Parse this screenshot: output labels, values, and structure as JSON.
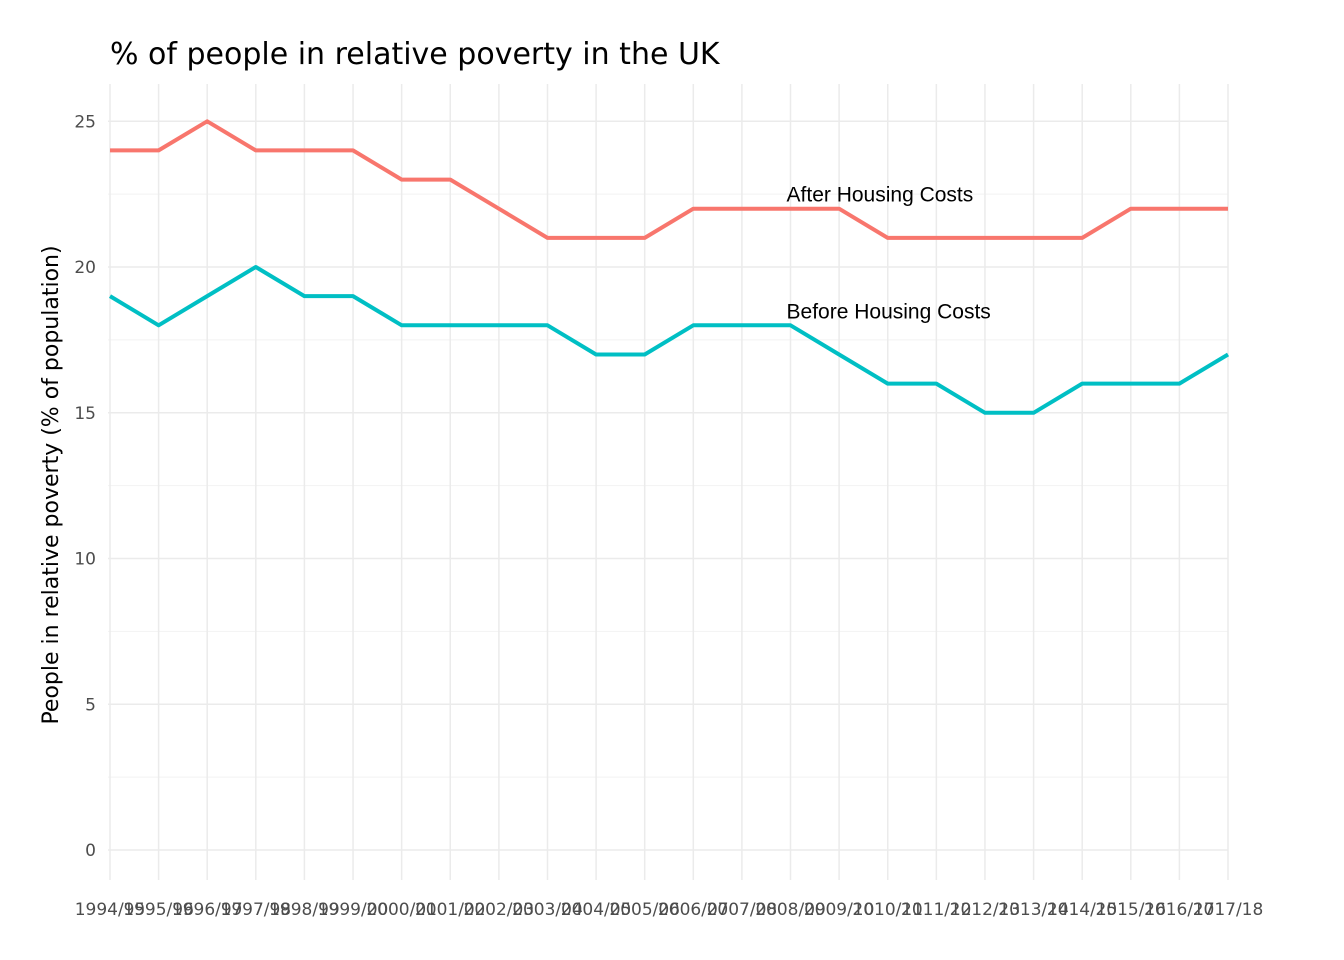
{
  "chart_data": {
    "type": "line",
    "title": "% of people in relative poverty in the UK",
    "xlabel": "",
    "ylabel": "People in relative poverty (% of population)",
    "ylim": [
      0,
      26
    ],
    "yticks": [
      "0",
      "5",
      "10",
      "15",
      "20",
      "25"
    ],
    "grid": true,
    "legend": "none",
    "categories": [
      "1994/95",
      "1995/96",
      "1996/97",
      "1997/98",
      "1998/99",
      "1999/00",
      "2000/01",
      "2001/02",
      "2002/03",
      "2003/04",
      "2004/05",
      "2005/06",
      "2006/07",
      "2007/08",
      "2008/09",
      "2009/10",
      "2010/11",
      "2011/12",
      "2012/13",
      "2013/14",
      "2014/15",
      "2015/16",
      "2016/17",
      "2017/18"
    ],
    "series": [
      {
        "name": "After Housing Costs",
        "color": "#F8766D",
        "values": [
          24,
          24,
          25,
          24,
          24,
          24,
          23,
          23,
          22,
          21,
          21,
          21,
          22,
          22,
          22,
          22,
          21,
          21,
          21,
          21,
          21,
          22,
          22,
          22
        ]
      },
      {
        "name": "Before Housing Costs",
        "color": "#00BFC4",
        "values": [
          19,
          18,
          19,
          20,
          19,
          19,
          18,
          18,
          18,
          18,
          17,
          17,
          18,
          18,
          18,
          17,
          16,
          16,
          15,
          15,
          16,
          16,
          16,
          17
        ]
      }
    ]
  }
}
